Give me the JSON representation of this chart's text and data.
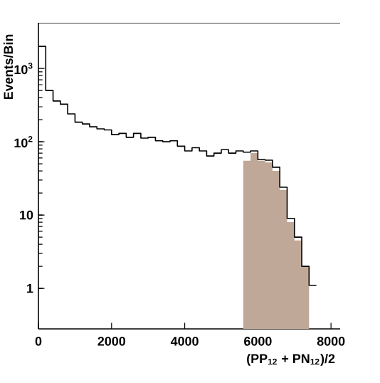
{
  "chart_data": {
    "type": "step",
    "xlabel": "(PP$_{12}$ + PN$_{12}$)/2",
    "ylabel": "Events/Bin",
    "series": [
      {
        "color": "#000000",
        "x": [
          0,
          200,
          400,
          600,
          800,
          1000,
          1200,
          1400,
          1600,
          1800,
          2000,
          2200,
          2400,
          2600,
          2800,
          3000,
          3200,
          3400,
          3600,
          3800,
          4000,
          4200,
          4400,
          4600,
          4800,
          5000,
          5200,
          5400,
          5600,
          5800,
          6000,
          6200,
          6400,
          6600,
          6800,
          7000,
          7200,
          7400,
          7600
        ],
        "values": [
          2000,
          500,
          360,
          325,
          240,
          185,
          175,
          160,
          150,
          145,
          125,
          130,
          115,
          130,
          112,
          115,
          103,
          100,
          103,
          87,
          75,
          83,
          75,
          64,
          70,
          78,
          70,
          75,
          72,
          75,
          57,
          56,
          45,
          24,
          9,
          5,
          2,
          1.1,
          1.1
        ]
      },
      {
        "type": "area",
        "color": "#c0a898",
        "x": [
          5600,
          5800,
          6000,
          6200,
          6400,
          6600,
          6800,
          7000,
          7200,
          7400
        ],
        "values": [
          55,
          70,
          55,
          52,
          40,
          22,
          8,
          4.5,
          2,
          2
        ]
      }
    ],
    "log": "y",
    "xlim": [
      0,
      8250
    ],
    "ylim": [
      0.28,
      4200
    ],
    "xticks": [
      0,
      2000,
      4000,
      6000,
      8000
    ],
    "yticks": [
      1,
      10,
      {
        "value": 100,
        "label": "10$^{2}$"
      },
      {
        "value": 1000,
        "label": "10$^{3}$"
      }
    ]
  }
}
